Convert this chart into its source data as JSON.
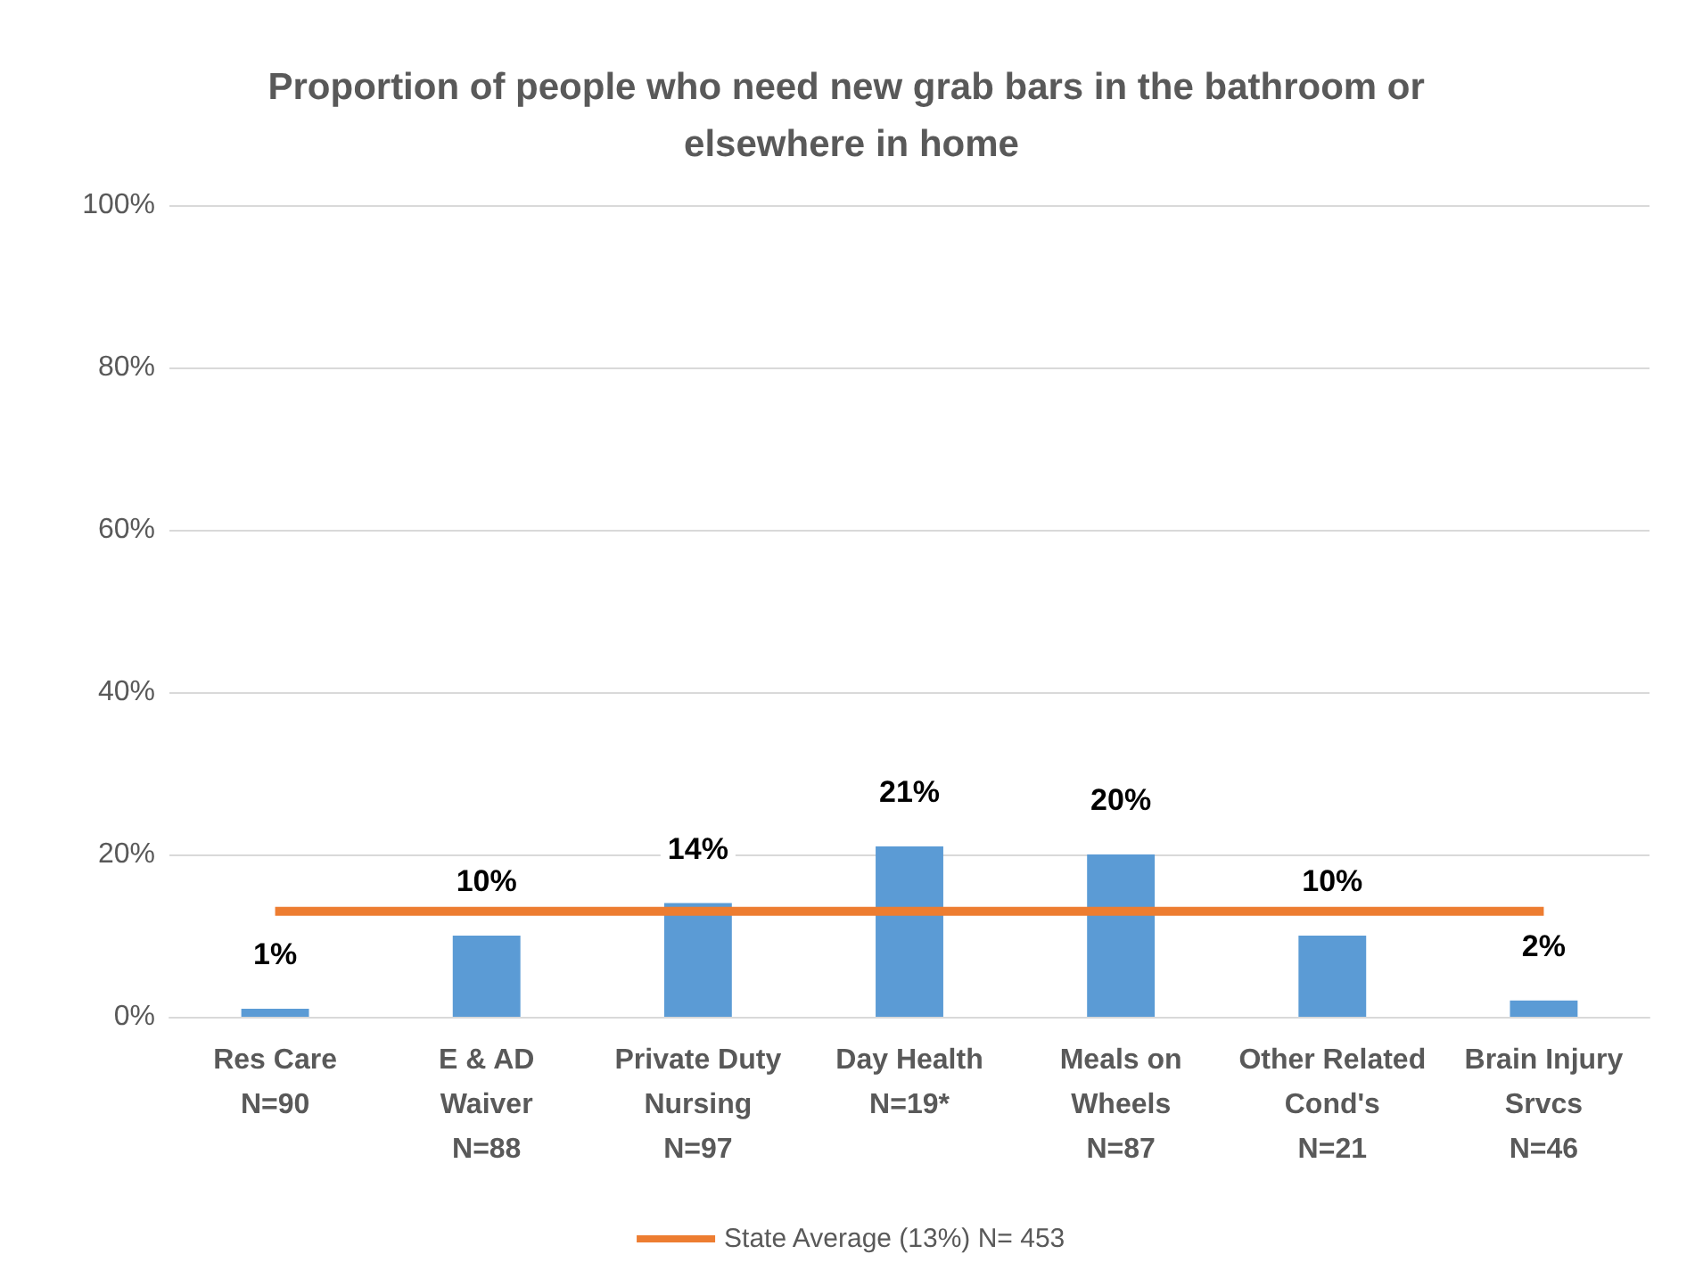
{
  "chart_data": {
    "type": "bar",
    "title": "Proportion of people who need new grab bars in the bathroom or elsewhere in home",
    "categories": [
      "Res Care\nN=90",
      "E & AD\nWaiver\nN=88",
      "Private Duty\nNursing\nN=97",
      "Day Health\nN=19*",
      "Meals on\nWheels\nN=87",
      "Other Related\nCond's\nN=21",
      "Brain Injury\nSrvcs\nN=46"
    ],
    "series": [
      {
        "color": "#5b9bd5",
        "values": [
          1,
          10,
          14,
          21,
          20,
          10,
          2
        ],
        "value_labels": [
          "1%",
          "10%",
          "14%",
          "21%",
          "20%",
          "10%",
          "2%"
        ]
      },
      {
        "type": "line",
        "name": "State Average (13%) N= 453",
        "color": "#ed7d31",
        "values": [
          13,
          13,
          13,
          13,
          13,
          13,
          13
        ],
        "marker": "none",
        "line_style": "solid"
      }
    ],
    "ylim": [
      0,
      100
    ],
    "yticks": [
      {
        "value": 0,
        "label": "0%"
      },
      {
        "value": 20,
        "label": "20%"
      },
      {
        "value": 40,
        "label": "40%"
      },
      {
        "value": 60,
        "label": "60%"
      },
      {
        "value": 80,
        "label": "80%"
      },
      {
        "value": 100,
        "label": "100%"
      }
    ],
    "grid": "y",
    "legend": "bottom"
  }
}
